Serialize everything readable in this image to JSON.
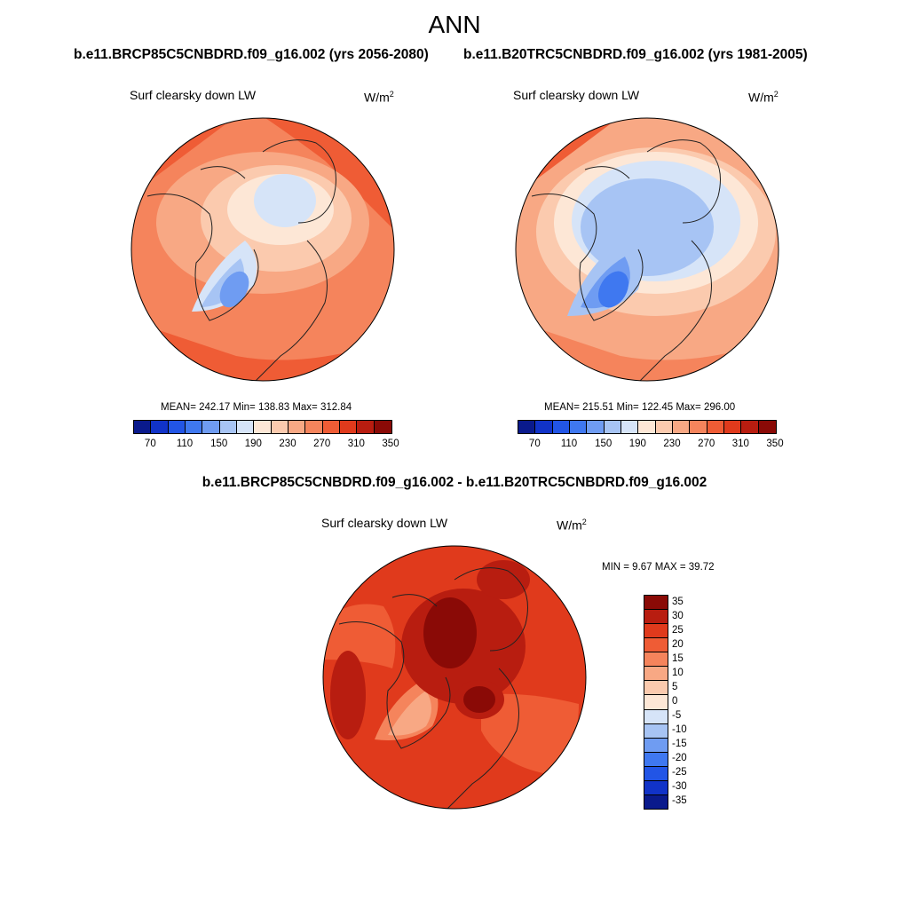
{
  "main_title": "ANN",
  "panel_a": {
    "case_title": "b.e11.BRCP85C5CNBDRD.f09_g16.002 (yrs 2056-2080)",
    "variable": "Surf clearsky down LW",
    "units_base": "W/m",
    "units_exp": "2",
    "stats": "MEAN= 242.17  Min= 138.83  Max= 312.84"
  },
  "panel_b": {
    "case_title": "b.e11.B20TRC5CNBDRD.f09_g16.002 (yrs 1981-2005)",
    "variable": "Surf clearsky down LW",
    "units_base": "W/m",
    "units_exp": "2",
    "stats": "MEAN= 215.51  Min= 122.45  Max= 296.00"
  },
  "diff_panel": {
    "title": "b.e11.BRCP85C5CNBDRD.f09_g16.002 - b.e11.B20TRC5CNBDRD.f09_g16.002",
    "variable": "Surf clearsky down LW",
    "units_base": "W/m",
    "units_exp": "2",
    "stats": "MIN =   9.67 MAX =  39.72"
  },
  "abs_colorbar": {
    "labels": [
      "70",
      "110",
      "150",
      "190",
      "230",
      "270",
      "310",
      "350"
    ],
    "colors": [
      "#0a1a8c",
      "#1133c8",
      "#2255e6",
      "#3f78f0",
      "#6f9cf2",
      "#a7c4f4",
      "#d6e4f8",
      "#fde7d6",
      "#fbcaae",
      "#f8a884",
      "#f5845c",
      "#ef5c35",
      "#e03a1c",
      "#b81d10",
      "#8a0a06"
    ]
  },
  "diff_colorbar": {
    "labels": [
      "35",
      "30",
      "25",
      "20",
      "15",
      "10",
      "5",
      "0",
      "-5",
      "-10",
      "-15",
      "-20",
      "-25",
      "-30",
      "-35"
    ],
    "colors": [
      "#8a0a06",
      "#b81d10",
      "#e03a1c",
      "#ef5c35",
      "#f5845c",
      "#f8a884",
      "#fbcaae",
      "#fde7d6",
      "#d6e4f8",
      "#a7c4f4",
      "#6f9cf2",
      "#3f78f0",
      "#2255e6",
      "#1133c8",
      "#0a1a8c"
    ]
  }
}
